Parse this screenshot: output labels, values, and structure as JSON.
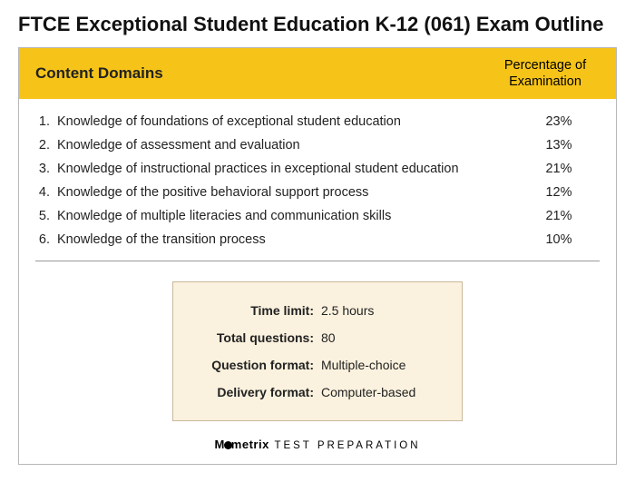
{
  "title": "FTCE Exceptional Student Education K-12 (061) Exam Outline",
  "header": {
    "left": "Content Domains",
    "right_l1": "Percentage of",
    "right_l2": "Examination",
    "bg_color": "#f6c419"
  },
  "domains": [
    {
      "n": "1.",
      "label": "Knowledge of foundations of exceptional student education",
      "pct": "23%"
    },
    {
      "n": "2.",
      "label": "Knowledge of assessment and evaluation",
      "pct": "13%"
    },
    {
      "n": "3.",
      "label": "Knowledge of instructional practices in exceptional student education",
      "pct": "21%"
    },
    {
      "n": "4.",
      "label": "Knowledge of the positive behavioral support process",
      "pct": "12%"
    },
    {
      "n": "5.",
      "label": "Knowledge of multiple literacies and communication skills",
      "pct": "21%"
    },
    {
      "n": "6.",
      "label": "Knowledge of the transition process",
      "pct": "10%"
    }
  ],
  "info": [
    {
      "k": "Time limit:",
      "v": "2.5 hours"
    },
    {
      "k": "Total questions:",
      "v": "80"
    },
    {
      "k": "Question format:",
      "v": "Multiple-choice"
    },
    {
      "k": "Delivery format:",
      "v": "Computer-based"
    }
  ],
  "info_style": {
    "bg_color": "#faf1de",
    "border_color": "#c9b89a"
  },
  "brand": {
    "name_pre": "M",
    "name_post": "metrix",
    "tag": "TEST PREPARATION"
  },
  "colors": {
    "page_bg": "#ffffff",
    "text": "#222222",
    "card_border": "#b7b7b7",
    "divider": "#999999"
  }
}
